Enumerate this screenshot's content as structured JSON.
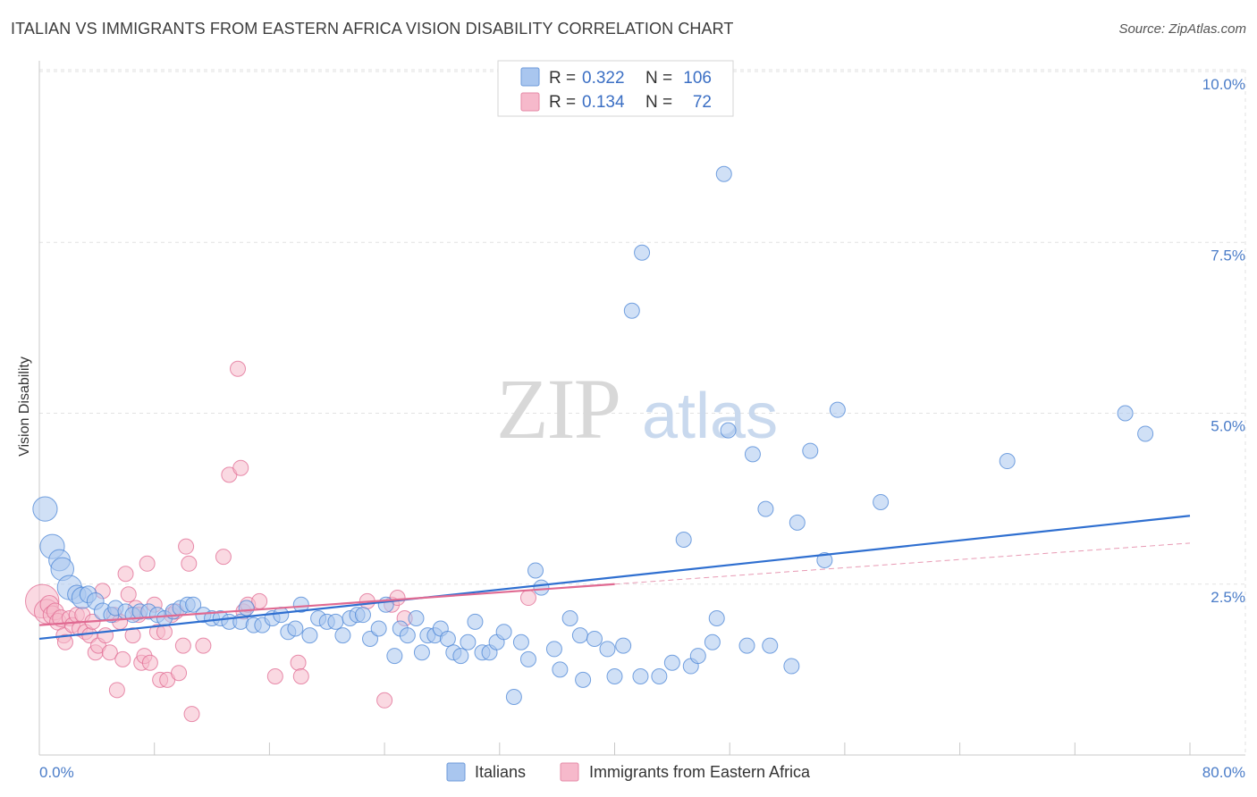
{
  "header": {
    "title": "ITALIAN VS IMMIGRANTS FROM EASTERN AFRICA VISION DISABILITY CORRELATION CHART",
    "source": "Source: ZipAtlas.com"
  },
  "watermark": {
    "zip": "ZIP",
    "atlas": "atlas"
  },
  "legend": {
    "r_label": "R =",
    "n_label": "N =",
    "rows": [
      {
        "r": "0.322",
        "n": "106",
        "color": "#a9c6ef"
      },
      {
        "r": "0.134",
        "n": "72",
        "color": "#f6b9cb"
      }
    ]
  },
  "bottom_legend": [
    {
      "label": "Italians",
      "color": "#a9c6ef"
    },
    {
      "label": "Immigrants from Eastern Africa",
      "color": "#f6b9cb"
    }
  ],
  "chart_data": {
    "type": "scatter",
    "ylabel": "Vision Disability",
    "x_tick_labels": [
      "0.0%",
      "80.0%"
    ],
    "y_tick_labels": [
      "2.5%",
      "5.0%",
      "7.5%",
      "10.0%"
    ],
    "y_ticks": [
      2.5,
      5.0,
      7.5,
      10.0
    ],
    "xlim": [
      0,
      80
    ],
    "ylim": [
      0,
      10
    ],
    "grid": true,
    "colors": {
      "series1": "#4a84d6",
      "series1_fill": "#a9c6ef",
      "series2": "#e06a92",
      "series2_fill": "#f6b9cb"
    },
    "series": [
      {
        "name": "Italians",
        "trend": {
          "x": [
            0,
            80
          ],
          "y": [
            1.7,
            3.5
          ],
          "dashed_from": null
        },
        "points": [
          [
            0.4,
            3.6,
            1.6
          ],
          [
            0.9,
            3.05,
            1.6
          ],
          [
            1.4,
            2.85,
            1.4
          ],
          [
            1.6,
            2.72,
            1.5
          ],
          [
            2.1,
            2.45,
            1.6
          ],
          [
            2.6,
            2.35,
            1.2
          ],
          [
            3.0,
            2.3,
            1.4
          ],
          [
            3.4,
            2.35,
            1.1
          ],
          [
            3.9,
            2.25,
            1.1
          ],
          [
            4.4,
            2.1,
            1.1
          ],
          [
            5.0,
            2.05,
            1.0
          ],
          [
            5.3,
            2.15,
            1.0
          ],
          [
            6.0,
            2.1,
            1.0
          ],
          [
            6.5,
            2.05,
            1.0
          ],
          [
            7.0,
            2.1,
            1.0
          ],
          [
            7.6,
            2.1,
            1.0
          ],
          [
            8.2,
            2.05,
            1.0
          ],
          [
            8.7,
            2.0,
            1.0
          ],
          [
            9.3,
            2.1,
            1.0
          ],
          [
            9.8,
            2.15,
            1.0
          ],
          [
            10.3,
            2.2,
            1.0
          ],
          [
            10.7,
            2.2,
            1.0
          ],
          [
            11.4,
            2.05,
            1.0
          ],
          [
            12.0,
            2.0,
            1.0
          ],
          [
            12.6,
            2.0,
            1.0
          ],
          [
            13.2,
            1.95,
            1.0
          ],
          [
            14.0,
            1.95,
            1.0
          ],
          [
            14.4,
            2.15,
            1.0
          ],
          [
            14.9,
            1.9,
            1.0
          ],
          [
            15.5,
            1.9,
            1.0
          ],
          [
            16.2,
            2.0,
            1.0
          ],
          [
            16.8,
            2.05,
            1.0
          ],
          [
            17.3,
            1.8,
            1.0
          ],
          [
            17.8,
            1.85,
            1.0
          ],
          [
            18.2,
            2.2,
            1.0
          ],
          [
            18.8,
            1.75,
            1.0
          ],
          [
            19.4,
            2.0,
            1.0
          ],
          [
            20.0,
            1.95,
            1.0
          ],
          [
            20.6,
            1.95,
            1.0
          ],
          [
            21.1,
            1.75,
            1.0
          ],
          [
            21.6,
            2.0,
            1.0
          ],
          [
            22.1,
            2.05,
            1.0
          ],
          [
            22.5,
            2.05,
            1.0
          ],
          [
            23.0,
            1.7,
            1.0
          ],
          [
            23.6,
            1.85,
            1.0
          ],
          [
            24.1,
            2.2,
            1.0
          ],
          [
            24.7,
            1.45,
            1.0
          ],
          [
            25.1,
            1.85,
            1.0
          ],
          [
            25.6,
            1.75,
            1.0
          ],
          [
            26.2,
            2.0,
            1.0
          ],
          [
            26.6,
            1.5,
            1.0
          ],
          [
            27.0,
            1.75,
            1.0
          ],
          [
            27.5,
            1.75,
            1.0
          ],
          [
            27.9,
            1.85,
            1.0
          ],
          [
            28.4,
            1.7,
            1.0
          ],
          [
            28.8,
            1.5,
            1.0
          ],
          [
            29.3,
            1.45,
            1.0
          ],
          [
            29.8,
            1.65,
            1.0
          ],
          [
            30.3,
            1.95,
            1.0
          ],
          [
            30.8,
            1.5,
            1.0
          ],
          [
            31.3,
            1.5,
            1.0
          ],
          [
            31.8,
            1.65,
            1.0
          ],
          [
            32.3,
            1.8,
            1.0
          ],
          [
            33.0,
            0.85,
            1.0
          ],
          [
            33.5,
            1.65,
            1.0
          ],
          [
            34.0,
            1.4,
            1.0
          ],
          [
            34.5,
            2.7,
            1.0
          ],
          [
            34.9,
            2.45,
            1.0
          ],
          [
            35.8,
            1.55,
            1.0
          ],
          [
            36.2,
            1.25,
            1.0
          ],
          [
            36.9,
            2.0,
            1.0
          ],
          [
            37.8,
            1.1,
            1.0
          ],
          [
            37.6,
            1.75,
            1.0
          ],
          [
            38.6,
            1.7,
            1.0
          ],
          [
            39.5,
            1.55,
            1.0
          ],
          [
            40.0,
            1.15,
            1.0
          ],
          [
            40.6,
            1.6,
            1.0
          ],
          [
            41.2,
            6.5,
            1.0
          ],
          [
            41.9,
            7.35,
            1.0
          ],
          [
            41.8,
            1.15,
            1.0
          ],
          [
            43.1,
            1.15,
            1.0
          ],
          [
            44.0,
            1.35,
            1.0
          ],
          [
            44.8,
            3.15,
            1.0
          ],
          [
            45.3,
            1.3,
            1.0
          ],
          [
            45.8,
            1.45,
            1.0
          ],
          [
            46.8,
            1.65,
            1.0
          ],
          [
            47.1,
            2.0,
            1.0
          ],
          [
            47.6,
            8.5,
            1.0
          ],
          [
            47.9,
            4.75,
            1.0
          ],
          [
            49.2,
            1.6,
            1.0
          ],
          [
            49.6,
            4.4,
            1.0
          ],
          [
            50.5,
            3.6,
            1.0
          ],
          [
            50.8,
            1.6,
            1.0
          ],
          [
            52.7,
            3.4,
            1.0
          ],
          [
            52.3,
            1.3,
            1.0
          ],
          [
            53.6,
            4.45,
            1.0
          ],
          [
            54.6,
            2.85,
            1.0
          ],
          [
            55.5,
            5.05,
            1.0
          ],
          [
            58.5,
            3.7,
            1.0
          ],
          [
            67.3,
            4.3,
            1.0
          ],
          [
            75.5,
            5.0,
            1.0
          ],
          [
            76.9,
            4.7,
            1.0
          ]
        ]
      },
      {
        "name": "Immigrants from Eastern Africa",
        "trend": {
          "x": [
            0,
            40
          ],
          "y": [
            1.9,
            2.5
          ],
          "dashed_x": [
            40,
            80
          ],
          "dashed_y": [
            2.5,
            3.1
          ]
        },
        "points": [
          [
            0.2,
            2.25,
            2.2
          ],
          [
            0.5,
            2.1,
            1.6
          ],
          [
            0.7,
            2.2,
            1.2
          ],
          [
            0.9,
            2.05,
            1.2
          ],
          [
            1.1,
            2.1,
            1.1
          ],
          [
            1.3,
            1.95,
            1.1
          ],
          [
            1.5,
            2.0,
            1.1
          ],
          [
            1.7,
            1.75,
            1.0
          ],
          [
            1.8,
            1.65,
            1.0
          ],
          [
            2.1,
            2.0,
            1.0
          ],
          [
            2.3,
            1.9,
            1.0
          ],
          [
            2.6,
            2.05,
            1.0
          ],
          [
            2.8,
            1.85,
            1.0
          ],
          [
            3.0,
            2.05,
            1.0
          ],
          [
            3.2,
            1.8,
            1.0
          ],
          [
            3.5,
            1.75,
            1.0
          ],
          [
            3.7,
            1.95,
            1.0
          ],
          [
            3.9,
            1.5,
            1.0
          ],
          [
            4.1,
            1.6,
            1.0
          ],
          [
            4.4,
            2.4,
            1.0
          ],
          [
            4.6,
            1.75,
            1.0
          ],
          [
            4.9,
            1.5,
            1.0
          ],
          [
            5.2,
            2.05,
            1.0
          ],
          [
            5.4,
            0.95,
            1.0
          ],
          [
            5.6,
            1.95,
            1.0
          ],
          [
            5.8,
            1.4,
            1.0
          ],
          [
            6.0,
            2.65,
            1.0
          ],
          [
            6.2,
            2.35,
            1.0
          ],
          [
            6.5,
            1.75,
            1.0
          ],
          [
            6.7,
            2.15,
            1.0
          ],
          [
            6.9,
            2.05,
            1.0
          ],
          [
            7.1,
            1.35,
            1.0
          ],
          [
            7.3,
            1.45,
            1.0
          ],
          [
            7.5,
            2.8,
            1.0
          ],
          [
            7.7,
            1.35,
            1.0
          ],
          [
            8.0,
            2.2,
            1.0
          ],
          [
            8.2,
            1.8,
            1.0
          ],
          [
            8.4,
            1.1,
            1.0
          ],
          [
            8.7,
            1.8,
            1.0
          ],
          [
            8.9,
            1.1,
            1.0
          ],
          [
            9.2,
            2.05,
            1.0
          ],
          [
            9.5,
            2.1,
            1.0
          ],
          [
            9.7,
            1.2,
            1.0
          ],
          [
            10.0,
            1.6,
            1.0
          ],
          [
            10.2,
            3.05,
            1.0
          ],
          [
            10.4,
            2.8,
            1.0
          ],
          [
            10.6,
            0.6,
            1.0
          ],
          [
            11.4,
            1.6,
            1.0
          ],
          [
            12.8,
            2.9,
            1.0
          ],
          [
            13.2,
            4.1,
            1.0
          ],
          [
            13.8,
            5.65,
            1.0
          ],
          [
            14.0,
            4.2,
            1.0
          ],
          [
            14.2,
            2.1,
            1.0
          ],
          [
            14.5,
            2.2,
            1.0
          ],
          [
            15.3,
            2.25,
            1.0
          ],
          [
            16.4,
            1.15,
            1.0
          ],
          [
            18.0,
            1.35,
            1.0
          ],
          [
            18.2,
            1.15,
            1.0
          ],
          [
            22.8,
            2.25,
            1.0
          ],
          [
            24.0,
            0.8,
            1.0
          ],
          [
            24.5,
            2.2,
            1.0
          ],
          [
            24.9,
            2.3,
            1.0
          ],
          [
            25.4,
            2.0,
            1.0
          ],
          [
            34.0,
            2.3,
            1.0
          ]
        ]
      }
    ]
  }
}
